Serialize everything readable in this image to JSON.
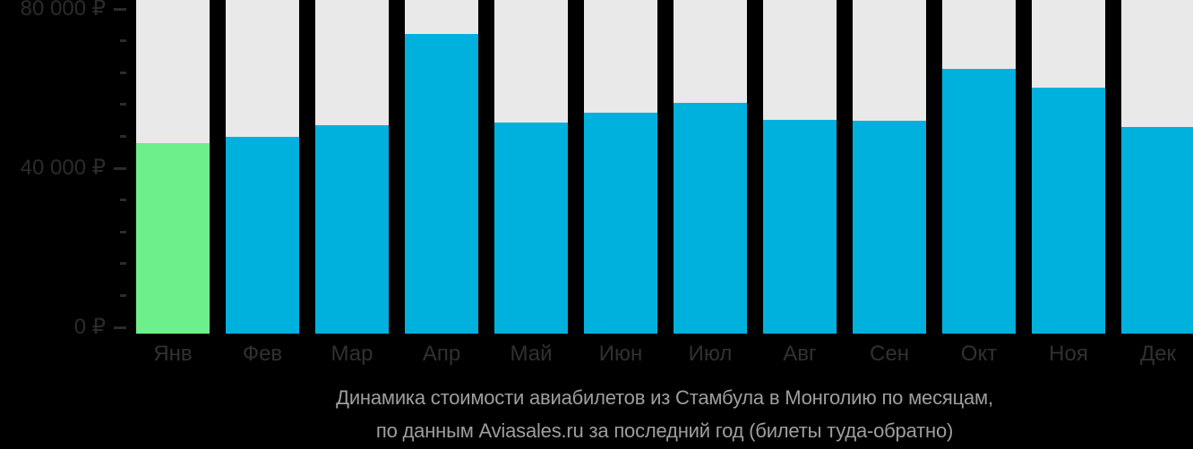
{
  "chart_data": {
    "type": "bar",
    "title": "Динамика стоимости авиабилетов из Стамбула в Монголию по месяцам, по данным Aviasales.ru за последний год (билеты туда-обратно)",
    "title_line1": "Динамика стоимости авиабилетов из Стамбула в Монголию по месяцам,",
    "title_line2": "по данным Aviasales.ru за последний год (билеты туда-обратно)",
    "categories": [
      "Янв",
      "Фев",
      "Мар",
      "Апр",
      "Май",
      "Июн",
      "Июл",
      "Авг",
      "Сен",
      "Окт",
      "Ноя",
      "Дек"
    ],
    "month_slugs": [
      "jan",
      "feb",
      "mar",
      "apr",
      "may",
      "jun",
      "jul",
      "aug",
      "sep",
      "oct",
      "nov",
      "dec"
    ],
    "values": [
      46300,
      47900,
      50800,
      73700,
      51500,
      54000,
      56300,
      52100,
      52000,
      65000,
      60200,
      50400
    ],
    "unit": "₽",
    "xlabel": "",
    "ylabel": "",
    "ylim": [
      0,
      80000
    ],
    "grid": false,
    "legend_position": "none",
    "highlight_index": 0,
    "y_axis": {
      "minor_step": 8000,
      "major_step": 40000,
      "labels": [
        {
          "value": 0,
          "text": "0 ₽"
        },
        {
          "value": 40000,
          "text": "40 000 ₽"
        },
        {
          "value": 80000,
          "text": "80 000 ₽"
        }
      ]
    },
    "colors": {
      "page_bg": "#000000",
      "column_bg": "#e9e9e9",
      "bar": "#00b1dd",
      "bar_highlight": "#6def8b",
      "tick": "#2b2b2b",
      "axis_text": "#2b2b2b",
      "x_label_text": "#313131",
      "caption_text": "#9e9e9e"
    }
  }
}
